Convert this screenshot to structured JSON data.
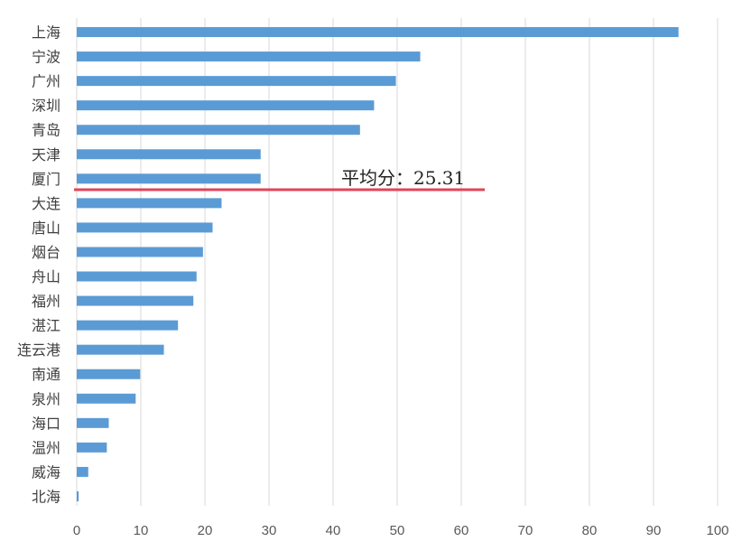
{
  "chart_data": {
    "type": "bar",
    "orientation": "horizontal",
    "categories": [
      "上海",
      "宁波",
      "广州",
      "深圳",
      "青岛",
      "天津",
      "厦门",
      "大连",
      "唐山",
      "烟台",
      "舟山",
      "福州",
      "湛江",
      "连云港",
      "南通",
      "泉州",
      "海口",
      "温州",
      "威海",
      "北海"
    ],
    "values": [
      93.9,
      53.6,
      49.8,
      46.4,
      44.2,
      28.7,
      28.7,
      22.6,
      21.2,
      19.7,
      18.7,
      18.2,
      15.8,
      13.6,
      9.9,
      9.2,
      5.0,
      4.7,
      1.8,
      0.3
    ],
    "xlim": [
      0,
      100
    ],
    "xticks": [
      0,
      10,
      20,
      30,
      40,
      50,
      60,
      70,
      80,
      90,
      100
    ],
    "grid": true,
    "bar_color": "#5b9bd5",
    "average": {
      "value": 25.31,
      "label": "平均分：25.31",
      "color": "#e0445a"
    }
  }
}
